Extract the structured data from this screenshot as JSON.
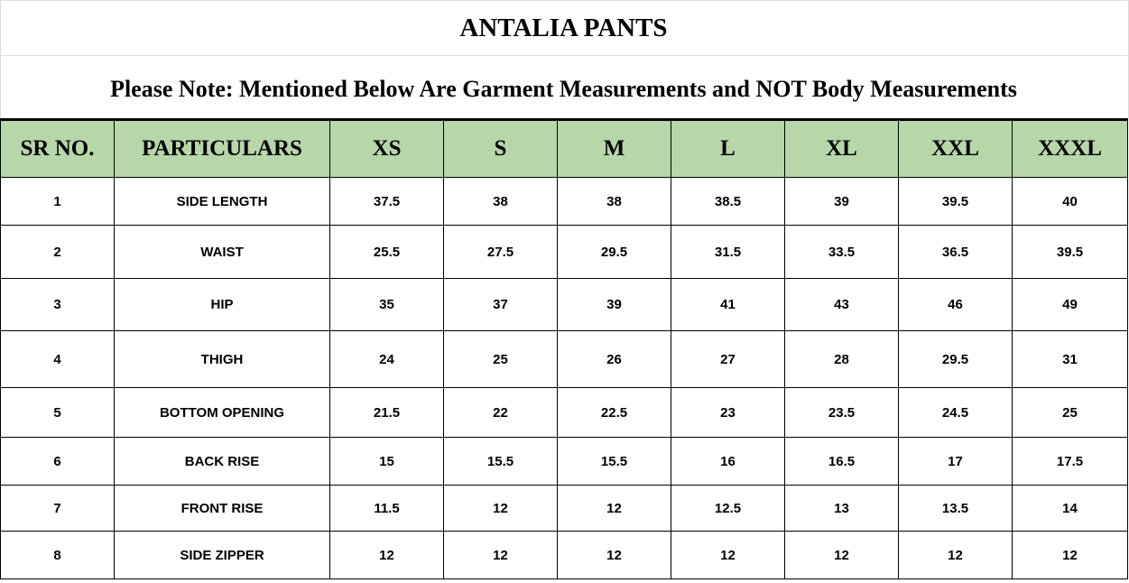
{
  "title": "ANTALIA PANTS",
  "note": "Please Note: Mentioned Below Are Garment Measurements and NOT Body Measurements",
  "colors": {
    "header_bg": "#b6d7a8"
  },
  "columns": [
    "SR NO.",
    "PARTICULARS",
    "XS",
    "S",
    "M",
    "L",
    "XL",
    "XXL",
    "XXXL"
  ],
  "rows": [
    [
      "1",
      "SIDE LENGTH",
      "37.5",
      "38",
      "38",
      "38.5",
      "39",
      "39.5",
      "40"
    ],
    [
      "2",
      "WAIST",
      "25.5",
      "27.5",
      "29.5",
      "31.5",
      "33.5",
      "36.5",
      "39.5"
    ],
    [
      "3",
      "HIP",
      "35",
      "37",
      "39",
      "41",
      "43",
      "46",
      "49"
    ],
    [
      "4",
      "THIGH",
      "24",
      "25",
      "26",
      "27",
      "28",
      "29.5",
      "31"
    ],
    [
      "5",
      "BOTTOM OPENING",
      "21.5",
      "22",
      "22.5",
      "23",
      "23.5",
      "24.5",
      "25"
    ],
    [
      "6",
      "BACK RISE",
      "15",
      "15.5",
      "15.5",
      "16",
      "16.5",
      "17",
      "17.5"
    ],
    [
      "7",
      "FRONT RISE",
      "11.5",
      "12",
      "12",
      "12.5",
      "13",
      "13.5",
      "14"
    ],
    [
      "8",
      "SIDE ZIPPER",
      "12",
      "12",
      "12",
      "12",
      "12",
      "12",
      "12"
    ]
  ]
}
